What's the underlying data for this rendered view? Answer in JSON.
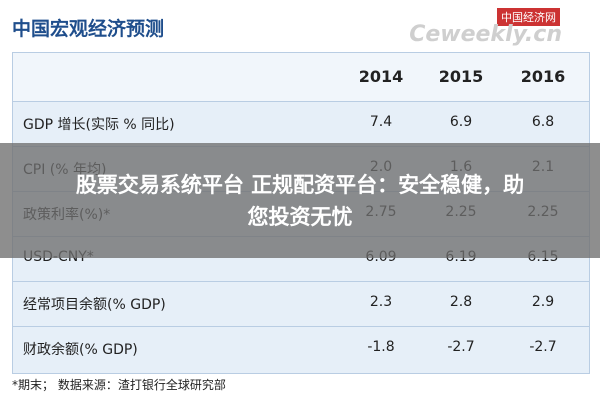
{
  "header": {
    "title": "中国宏观经济预测",
    "watermark": "中国经济网",
    "watermark_site": "Ceweekly.cn"
  },
  "table": {
    "columns": [
      "2014",
      "2015",
      "2016"
    ],
    "rows": [
      [
        "GDP 增长(实际 % 同比)",
        "7.4",
        "6.9",
        "6.8"
      ],
      [
        "CPI (% 年均)",
        "2.0",
        "1.6",
        "2.1"
      ],
      [
        "政策利率(%)*",
        "2.75",
        "2.25",
        "2.25"
      ],
      [
        "USD-CNY*",
        "6.09",
        "6.19",
        "6.15"
      ],
      [
        "经常项目余额(% GDP)",
        "2.3",
        "2.8",
        "2.9"
      ],
      [
        "财政余额(% GDP)",
        "-1.8",
        "-2.7",
        "-2.7"
      ]
    ]
  },
  "footnote": "*期末；  数据来源：渣打银行全球研究部",
  "banner": {
    "line1": "股票交易系统平台 正规配资平台：安全稳健，助",
    "line2": "您投资无忧"
  }
}
